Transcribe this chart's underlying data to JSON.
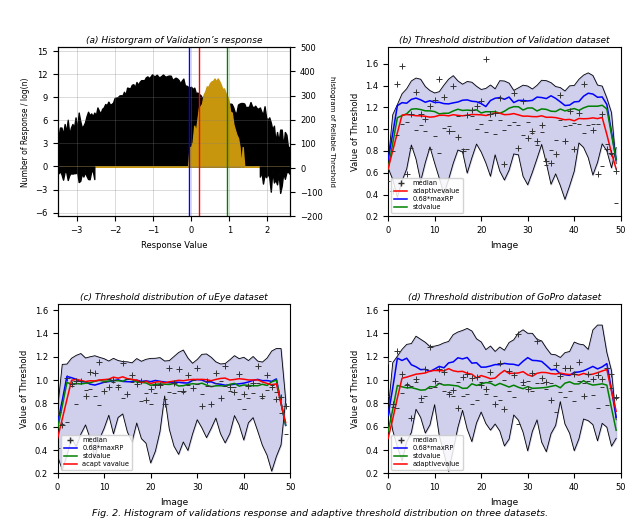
{
  "title": "Fig. 2. Histogram of validations response and adaptive threshold distribution on three datasets.",
  "subplot_titles": [
    "(a) Historgram of Validation’s response",
    "(b) Threshold distribution of Validation dataset",
    "(c) Threshold distribution of uEye dataset",
    "(d) Threshold distribution of GoPro dataset"
  ],
  "hist_xlim": [
    -3.5,
    2.6
  ],
  "hist_ylim": [
    -6.5,
    15.5
  ],
  "hist_ylim2": [
    -200,
    500
  ],
  "hist_yticks_left": [
    -6.0,
    -3.0,
    0.0,
    3.0,
    6.0,
    9.0,
    12.0,
    15.0
  ],
  "hist_yticks_right": [
    -200,
    -100,
    0,
    100,
    200,
    300,
    400,
    500
  ],
  "hist_xticks": [
    -3.0,
    -2.0,
    -1.0,
    0.0,
    1.0,
    2.0
  ],
  "blue_line_x": -0.05,
  "red_line_x": 0.2,
  "green_line_x": 0.95,
  "threshold_xlim": [
    0,
    50
  ],
  "threshold_ylim_b": [
    0.2,
    1.75
  ],
  "threshold_ylim_c": [
    0.2,
    1.65
  ],
  "threshold_ylim_d": [
    0.2,
    1.65
  ],
  "fill_color": "#aaaadd",
  "fill_alpha": 0.55
}
